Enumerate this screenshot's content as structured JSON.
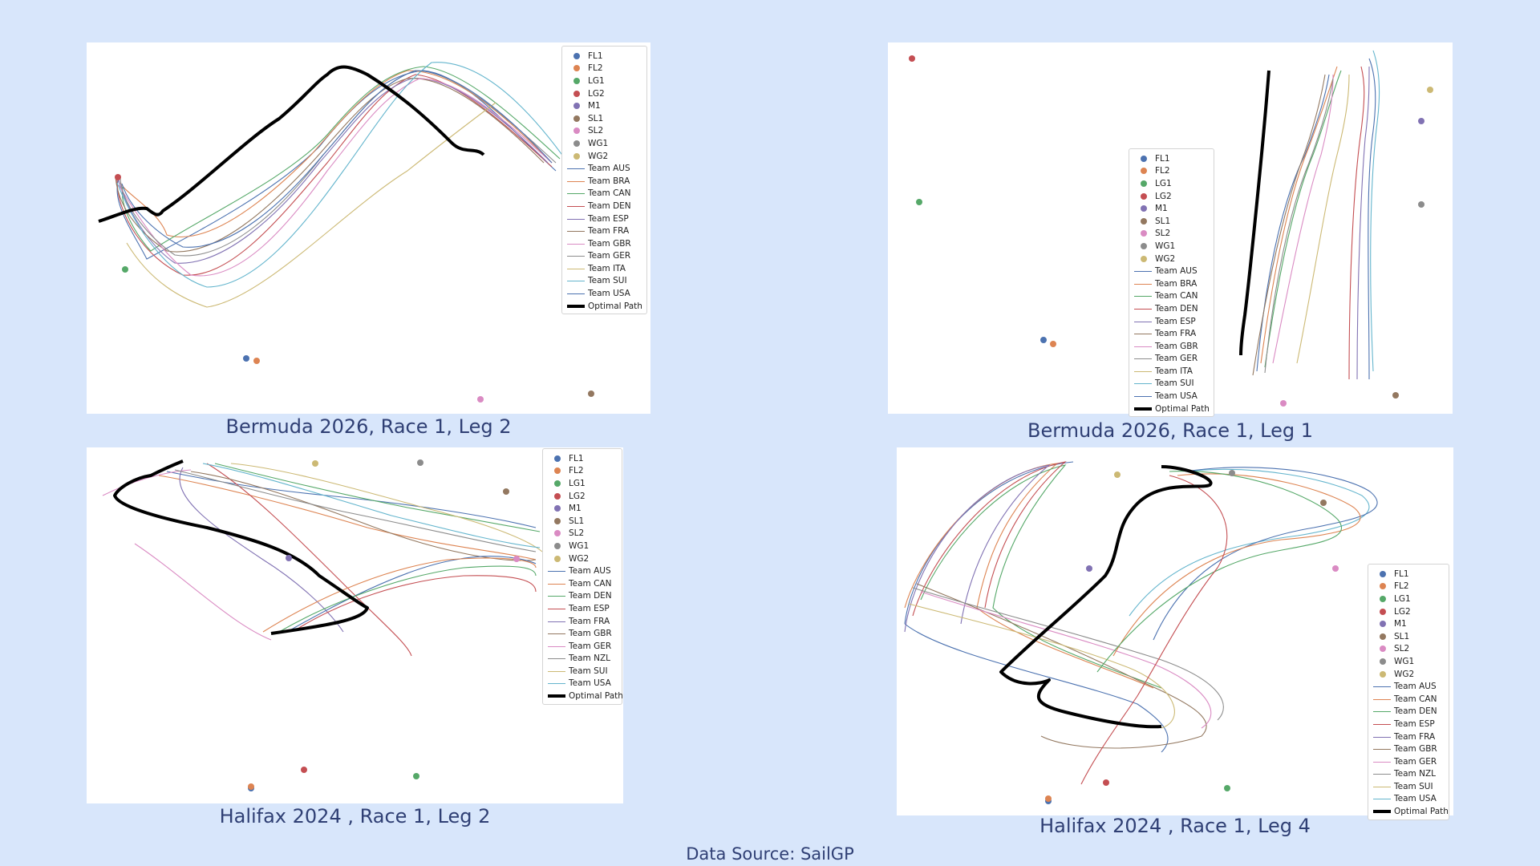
{
  "colors": {
    "background": "#d8e6fb",
    "caption": "#2f3f74",
    "markers": {
      "FL1": "#4c72b0",
      "FL2": "#dd8452",
      "LG1": "#55a868",
      "LG2": "#c44e52",
      "M1": "#8172b3",
      "SL1": "#937860",
      "SL2": "#da8bc3",
      "WG1": "#8c8c8c",
      "WG2": "#ccb974"
    },
    "teams": {
      "Team AUS": "#4c72b0",
      "Team BRA": "#dd8452",
      "Team CAN": "#55a868",
      "Team DEN": "#c44e52",
      "Team ESP": "#8172b3",
      "Team FRA": "#937860",
      "Team GBR": "#da8bc3",
      "Team GER": "#8c8c8c",
      "Team ITA": "#ccb974",
      "Team SUI": "#64b5cd",
      "Team USA": "#4c72b0",
      "Team NZL": "#8c8c8c"
    },
    "optimal": "#000000"
  },
  "footer": "Data Source: SailGP",
  "chart_data": [
    {
      "id": "tl",
      "type": "line",
      "title": "Bermuda 2026, Race 1, Leg 2",
      "legend_placement": "top-right",
      "grid": false,
      "markers": [
        "FL1",
        "FL2",
        "LG1",
        "LG2",
        "M1",
        "SL1",
        "SL2",
        "WG1",
        "WG2"
      ],
      "series": [
        {
          "name": "Team AUS",
          "color": "#4c72b0"
        },
        {
          "name": "Team BRA",
          "color": "#dd8452"
        },
        {
          "name": "Team CAN",
          "color": "#55a868"
        },
        {
          "name": "Team DEN",
          "color": "#c44e52"
        },
        {
          "name": "Team ESP",
          "color": "#8172b3"
        },
        {
          "name": "Team FRA",
          "color": "#937860"
        },
        {
          "name": "Team GBR",
          "color": "#da8bc3"
        },
        {
          "name": "Team GER",
          "color": "#8c8c8c"
        },
        {
          "name": "Team ITA",
          "color": "#ccb974"
        },
        {
          "name": "Team SUI",
          "color": "#64b5cd"
        },
        {
          "name": "Team USA",
          "color": "#4c72b0"
        },
        {
          "name": "Optimal Path",
          "color": "#000000",
          "thick": true
        }
      ]
    },
    {
      "id": "tr",
      "type": "line",
      "title": "Bermuda 2026, Race 1, Leg 1",
      "legend_placement": "center",
      "grid": false,
      "markers": [
        "FL1",
        "FL2",
        "LG1",
        "LG2",
        "M1",
        "SL1",
        "SL2",
        "WG1",
        "WG2"
      ],
      "series": [
        {
          "name": "Team AUS",
          "color": "#4c72b0"
        },
        {
          "name": "Team BRA",
          "color": "#dd8452"
        },
        {
          "name": "Team CAN",
          "color": "#55a868"
        },
        {
          "name": "Team DEN",
          "color": "#c44e52"
        },
        {
          "name": "Team ESP",
          "color": "#8172b3"
        },
        {
          "name": "Team FRA",
          "color": "#937860"
        },
        {
          "name": "Team GBR",
          "color": "#da8bc3"
        },
        {
          "name": "Team GER",
          "color": "#8c8c8c"
        },
        {
          "name": "Team ITA",
          "color": "#ccb974"
        },
        {
          "name": "Team SUI",
          "color": "#64b5cd"
        },
        {
          "name": "Team USA",
          "color": "#4c72b0"
        },
        {
          "name": "Optimal Path",
          "color": "#000000",
          "thick": true
        }
      ]
    },
    {
      "id": "bl",
      "type": "line",
      "title": "Halifax 2024 , Race 1, Leg 2",
      "legend_placement": "top-right",
      "grid": false,
      "markers": [
        "FL1",
        "FL2",
        "LG1",
        "LG2",
        "M1",
        "SL1",
        "SL2",
        "WG1",
        "WG2"
      ],
      "series": [
        {
          "name": "Team AUS",
          "color": "#4c72b0"
        },
        {
          "name": "Team CAN",
          "color": "#dd8452"
        },
        {
          "name": "Team DEN",
          "color": "#55a868"
        },
        {
          "name": "Team ESP",
          "color": "#c44e52"
        },
        {
          "name": "Team FRA",
          "color": "#8172b3"
        },
        {
          "name": "Team GBR",
          "color": "#937860"
        },
        {
          "name": "Team GER",
          "color": "#da8bc3"
        },
        {
          "name": "Team NZL",
          "color": "#8c8c8c"
        },
        {
          "name": "Team SUI",
          "color": "#ccb974"
        },
        {
          "name": "Team USA",
          "color": "#64b5cd"
        },
        {
          "name": "Optimal Path",
          "color": "#000000",
          "thick": true
        }
      ]
    },
    {
      "id": "br",
      "type": "line",
      "title": "Halifax 2024 , Race 1, Leg 4",
      "legend_placement": "bottom-right",
      "grid": false,
      "markers": [
        "FL1",
        "FL2",
        "LG1",
        "LG2",
        "M1",
        "SL1",
        "SL2",
        "WG1",
        "WG2"
      ],
      "series": [
        {
          "name": "Team AUS",
          "color": "#4c72b0"
        },
        {
          "name": "Team CAN",
          "color": "#dd8452"
        },
        {
          "name": "Team DEN",
          "color": "#55a868"
        },
        {
          "name": "Team ESP",
          "color": "#c44e52"
        },
        {
          "name": "Team FRA",
          "color": "#8172b3"
        },
        {
          "name": "Team GBR",
          "color": "#937860"
        },
        {
          "name": "Team GER",
          "color": "#da8bc3"
        },
        {
          "name": "Team NZL",
          "color": "#8c8c8c"
        },
        {
          "name": "Team SUI",
          "color": "#ccb974"
        },
        {
          "name": "Team USA",
          "color": "#64b5cd"
        },
        {
          "name": "Optimal Path",
          "color": "#000000",
          "thick": true
        }
      ]
    }
  ]
}
